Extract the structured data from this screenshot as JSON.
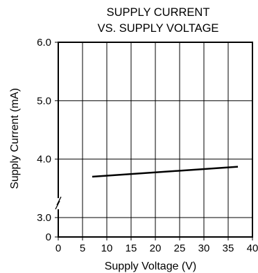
{
  "chart_data": {
    "type": "line",
    "title_line1": "SUPPLY CURRENT",
    "title_line2": "VS. SUPPLY VOLTAGE",
    "xlabel": "Supply Voltage (V)",
    "ylabel": "Supply Current (mA)",
    "x_ticks": [
      "0",
      "5",
      "10",
      "15",
      "20",
      "25",
      "30",
      "35",
      "40"
    ],
    "y_ticks": [
      "0",
      "3.0",
      "4.0",
      "5.0",
      "6.0"
    ],
    "xlim": [
      0,
      40
    ],
    "y_scale": "broken",
    "y_break": "between 0 and 3.0",
    "grid": true,
    "series": [
      {
        "x": [
          7,
          37
        ],
        "y": [
          3.7,
          3.87
        ]
      }
    ]
  }
}
